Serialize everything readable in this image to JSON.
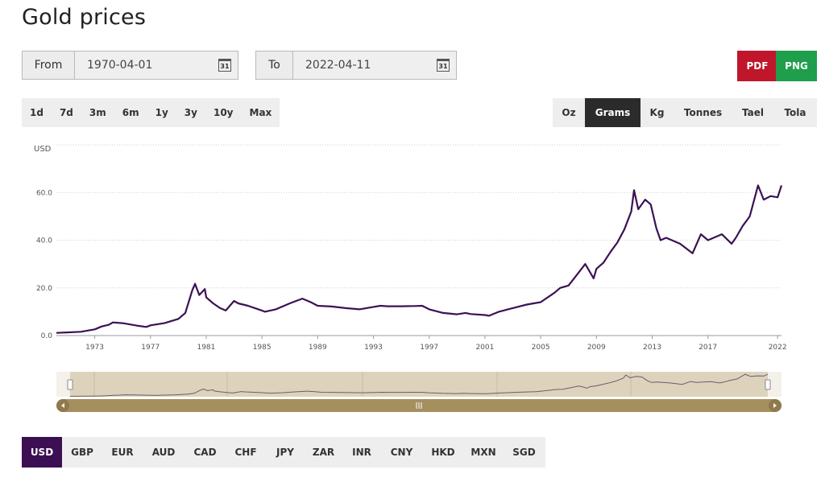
{
  "page": {
    "title": "Gold prices"
  },
  "date_range": {
    "from_label": "From",
    "from_value": "1970-04-01",
    "to_label": "To",
    "to_value": "2022-04-11",
    "calendar_icon_text": "31"
  },
  "export": {
    "pdf_label": "PDF",
    "png_label": "PNG",
    "pdf_color": "#c0162c",
    "png_color": "#1f9e4b"
  },
  "time_ranges": [
    "1d",
    "7d",
    "3m",
    "6m",
    "1y",
    "3y",
    "10y",
    "Max"
  ],
  "units": {
    "options": [
      "Oz",
      "Grams",
      "Kg",
      "Tonnes",
      "Tael",
      "Tola"
    ],
    "selected": "Grams"
  },
  "currencies": {
    "options": [
      "USD",
      "GBP",
      "EUR",
      "AUD",
      "CAD",
      "CHF",
      "JPY",
      "ZAR",
      "INR",
      "CNY",
      "HKD",
      "MXN",
      "SGD"
    ],
    "selected": "USD"
  },
  "colors": {
    "line": "#3a1255",
    "navigator_bg": "#ddd3bd",
    "navigator_scrollbar": "#a68f5f",
    "currency_active": "#3c0f52",
    "unit_active": "#2b2b2b"
  },
  "chart_data": {
    "type": "line",
    "ylabel": "USD",
    "ylim": [
      0,
      80
    ],
    "yticks": [
      "0.0",
      "20.0",
      "40.0",
      "60.0"
    ],
    "xlim": [
      1970.25,
      2022.28
    ],
    "xticks": [
      "1973",
      "1977",
      "1981",
      "1985",
      "1989",
      "1993",
      "1997",
      "2001",
      "2005",
      "2009",
      "2013",
      "2017",
      "2022"
    ],
    "grid": true,
    "series": [
      {
        "x": [
          1970.25,
          1971.0,
          1972.0,
          1972.5,
          1973.0,
          1973.5,
          1974.0,
          1974.3,
          1975.0,
          1976.0,
          1976.7,
          1977.0,
          1978.0,
          1979.0,
          1979.5,
          1980.0,
          1980.2,
          1980.5,
          1980.9,
          1981.0,
          1981.5,
          1982.0,
          1982.4,
          1983.0,
          1983.3,
          1984.0,
          1985.0,
          1985.2,
          1986.0,
          1987.0,
          1987.9,
          1988.5,
          1989.0,
          1990.0,
          1991.0,
          1992.0,
          1993.0,
          1993.5,
          1994.0,
          1995.0,
          1996.0,
          1996.5,
          1997.0,
          1998.0,
          1999.0,
          1999.6,
          2000.0,
          2001.0,
          2001.3,
          2002.0,
          2003.0,
          2004.0,
          2005.0,
          2006.0,
          2006.4,
          2007.0,
          2008.0,
          2008.2,
          2008.8,
          2009.0,
          2009.5,
          2010.0,
          2010.5,
          2011.0,
          2011.5,
          2011.7,
          2012.0,
          2012.5,
          2012.9,
          2013.3,
          2013.6,
          2014.0,
          2015.0,
          2015.9,
          2016.5,
          2017.0,
          2018.0,
          2018.7,
          2019.0,
          2019.5,
          2020.0,
          2020.6,
          2021.0,
          2021.5,
          2022.0,
          2022.28
        ],
        "y": [
          1.1,
          1.3,
          1.6,
          2.1,
          2.6,
          3.8,
          4.5,
          5.5,
          5.2,
          4.2,
          3.6,
          4.3,
          5.2,
          7.0,
          9.5,
          19.0,
          21.7,
          17.0,
          19.5,
          16.0,
          13.5,
          11.5,
          10.5,
          14.5,
          13.5,
          12.5,
          10.5,
          10.0,
          11.0,
          13.5,
          15.5,
          14.0,
          12.5,
          12.2,
          11.5,
          11.0,
          12.0,
          12.5,
          12.3,
          12.3,
          12.4,
          12.5,
          11.0,
          9.5,
          8.9,
          9.5,
          9.0,
          8.6,
          8.3,
          10.0,
          11.5,
          13.0,
          14.0,
          18.0,
          20.0,
          21.0,
          28.5,
          30.0,
          24.0,
          28.0,
          30.5,
          35.0,
          39.0,
          44.5,
          52.0,
          61.0,
          53.0,
          57.0,
          55.0,
          45.0,
          40.0,
          41.0,
          38.5,
          34.5,
          42.5,
          40.0,
          42.5,
          38.5,
          41.0,
          46.0,
          50.0,
          63.0,
          57.0,
          58.5,
          58.0,
          63.0
        ]
      }
    ]
  }
}
